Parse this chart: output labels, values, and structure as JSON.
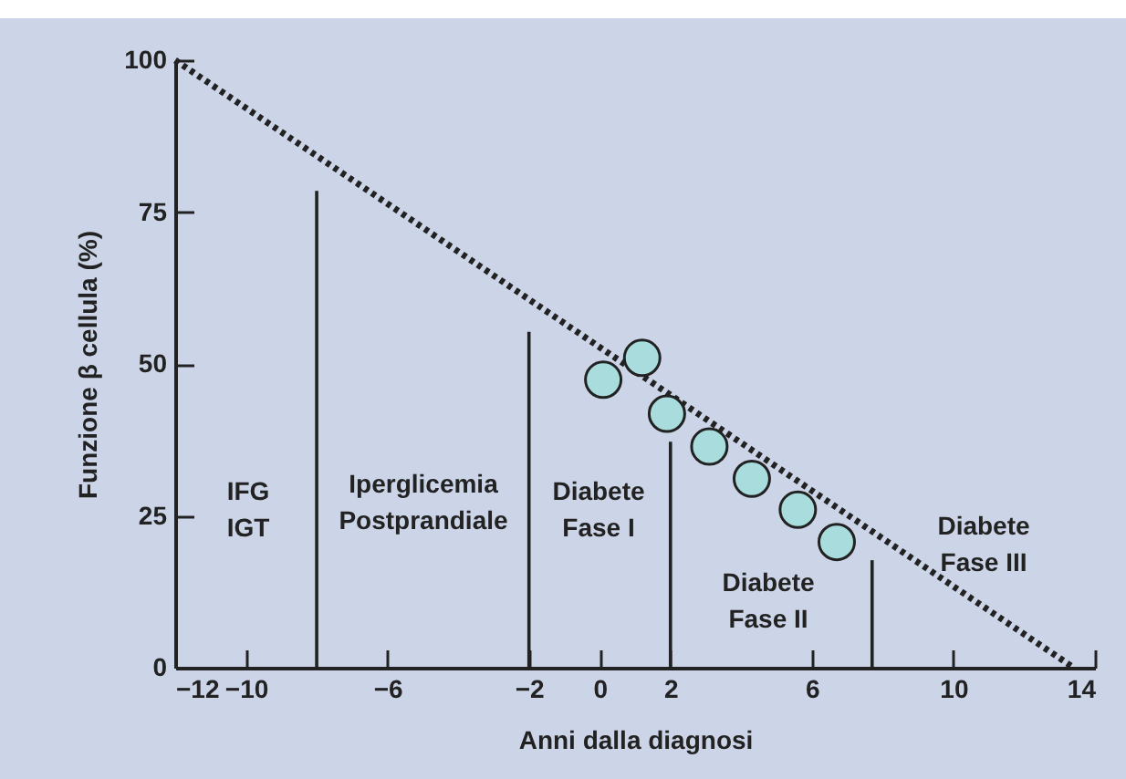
{
  "chart_data": {
    "type": "line",
    "xlabel": "Anni dalla diagnosi",
    "ylabel": "Funzione β cellula (%)",
    "xlim": [
      -12,
      14
    ],
    "xticks": [
      -12,
      -10,
      -6,
      -2,
      0,
      2,
      6,
      10,
      14
    ],
    "ylim": [
      0,
      100
    ],
    "yticks": [
      0,
      25,
      50,
      75,
      100
    ],
    "grid": false,
    "series": [
      {
        "type": "line",
        "x": [
          -12,
          13.4
        ],
        "values": [
          100,
          0
        ],
        "color": "#222222",
        "line_style": "dotted",
        "marker": "none"
      },
      {
        "type": "line",
        "x": [
          -8,
          -8
        ],
        "values": [
          0,
          78.5
        ],
        "color": "#222222",
        "line_style": "solid",
        "marker": "none"
      },
      {
        "type": "line",
        "x": [
          -2,
          -2
        ],
        "values": [
          0,
          55.3
        ],
        "color": "#222222",
        "line_style": "solid",
        "marker": "none"
      },
      {
        "type": "line",
        "x": [
          2,
          2
        ],
        "values": [
          0,
          37.2
        ],
        "color": "#222222",
        "line_style": "solid",
        "marker": "none"
      },
      {
        "type": "line",
        "x": [
          7.7,
          7.7
        ],
        "values": [
          0,
          17.7
        ],
        "color": "#222222",
        "line_style": "solid",
        "marker": "none"
      },
      {
        "type": "scatter",
        "x": [
          0.1,
          1.2,
          1.9,
          3.1,
          4.3,
          5.6,
          6.7
        ],
        "values": [
          47.4,
          51.0,
          41.8,
          36.4,
          31.1,
          26.0,
          20.7
        ],
        "color": "#a9dcdc",
        "marker": "circle"
      }
    ],
    "annotations": [
      "IFG\nIGT",
      "Iperglicemia\nPostprandiale",
      "Diabete\nFase I",
      "Diabete\nFase II",
      "Diabete\nFase III"
    ]
  }
}
